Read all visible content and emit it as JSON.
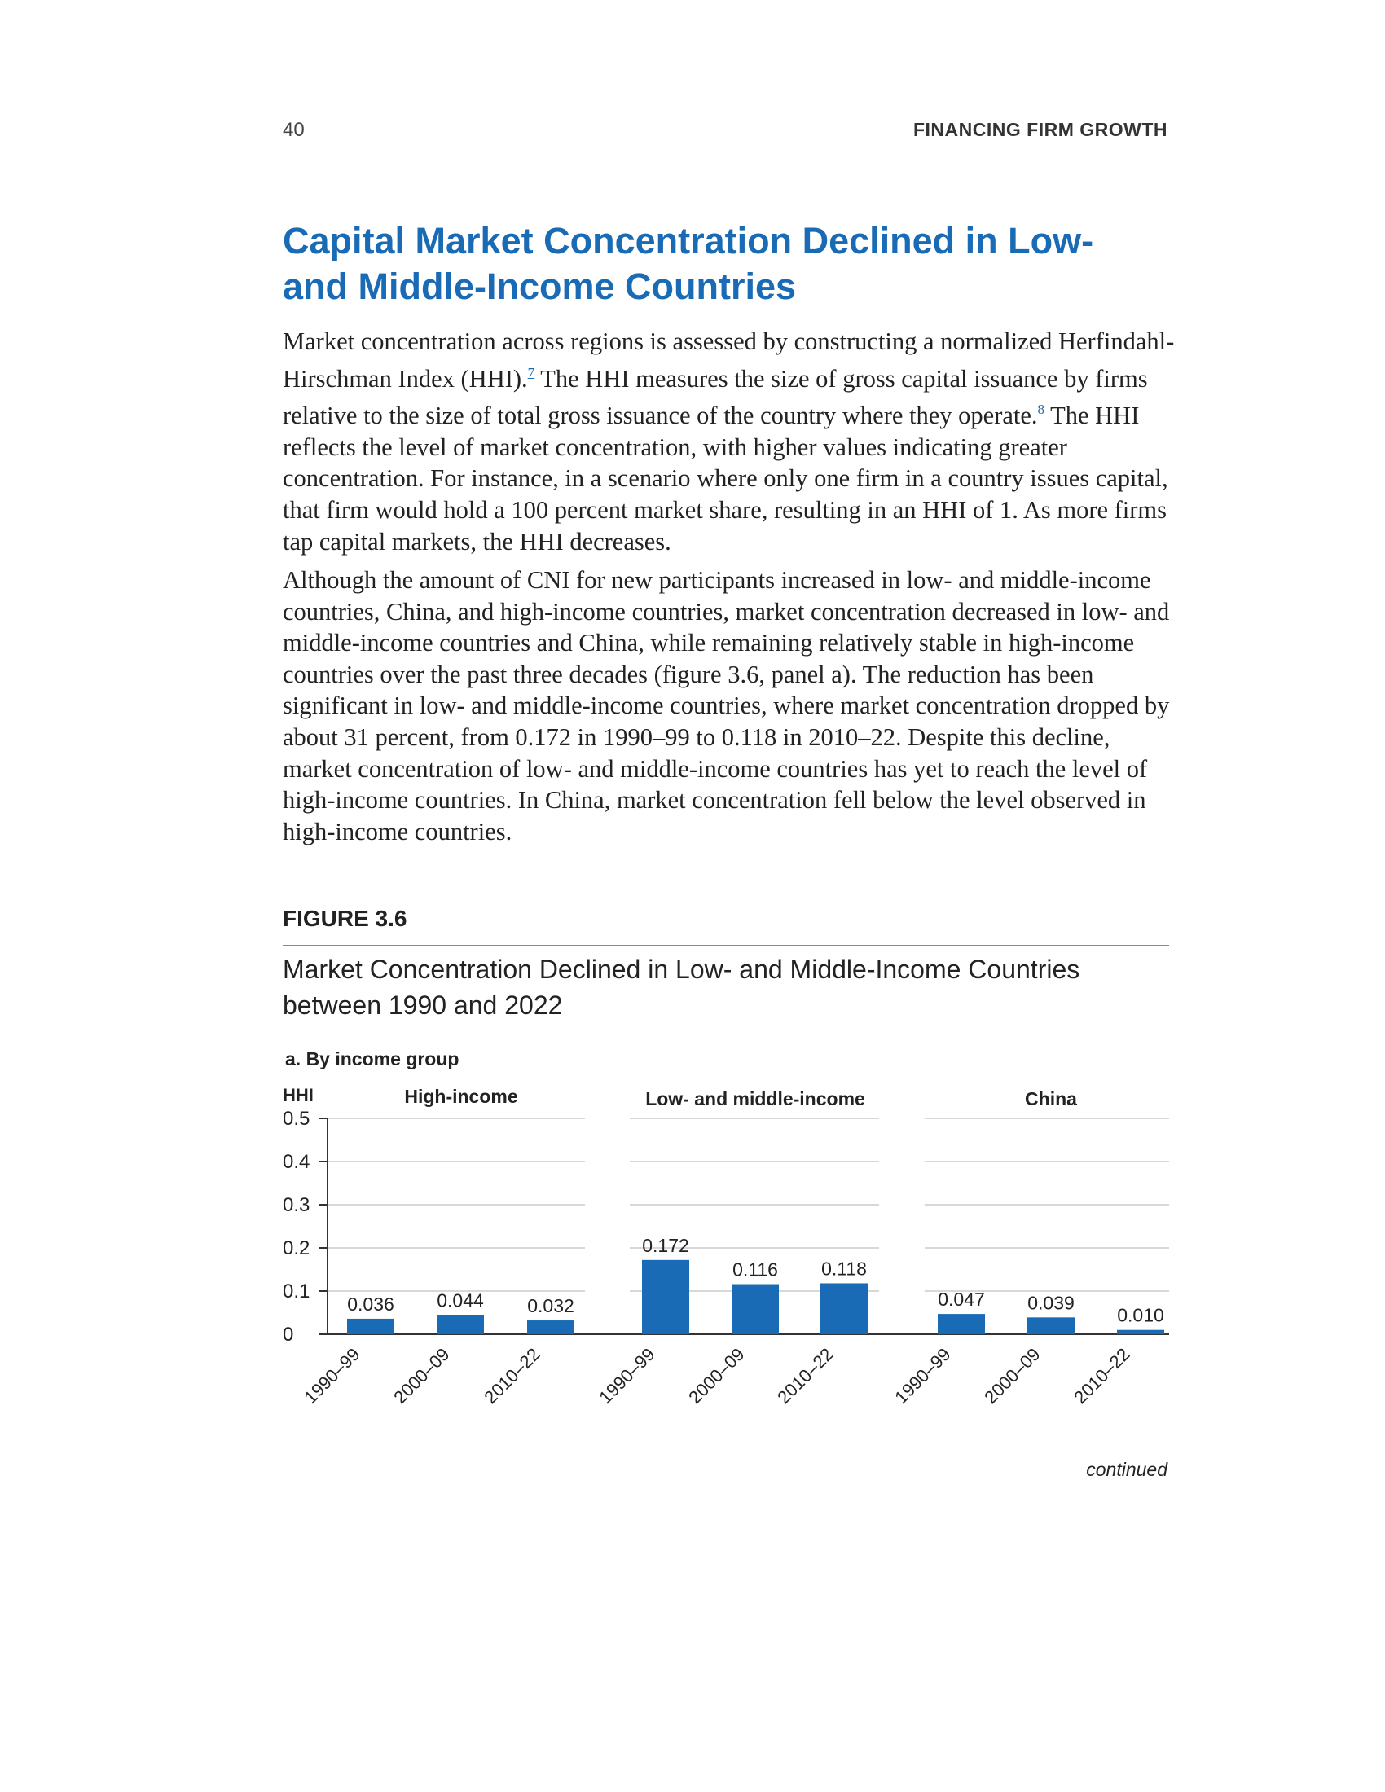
{
  "header": {
    "page_number": "40",
    "running_title": "FINANCING FIRM GROWTH"
  },
  "section": {
    "title": "Capital Market Concentration Declined in Low- and Middle-Income Countries"
  },
  "paragraphs": {
    "p1_a": "Market concentration across regions is assessed by constructing a normalized Herfindahl-Hirschman Index (HHI).",
    "p1_note1": "7",
    "p1_b": " The HHI measures the size of gross capital issuance by firms relative to the size of total gross issuance of the country where they operate.",
    "p1_note2": "8",
    "p1_c": " The HHI reflects the level of market concentration, with higher values indicating greater concentration. For instance, in a scenario where only one firm in a country issues capital, that firm would hold a 100 percent market share, resulting in an HHI of 1. As more firms tap capital markets, the HHI decreases.",
    "p2": "Although the amount of CNI for new participants increased in low- and middle-income countries, China, and high-income countries, market concentration decreased in low- and middle-income countries and China, while remaining relatively stable in high-income countries over the past three decades (figure 3.6, panel a). The reduction has been significant in low- and middle-income countries, where market concentration dropped by about 31 percent, from 0.172 in 1990–99 to 0.118 in 2010–22. Despite this decline, market concentration of low- and middle-income countries has yet to reach the level of high-income countries. In China, market concentration fell below the level observed in high-income countries."
  },
  "figure": {
    "label": "FIGURE 3.6",
    "title": "Market Concentration Declined in Low- and Middle-Income Countries between 1990 and 2022",
    "panel_label": "a. By income group",
    "continued": "continued"
  },
  "colors": {
    "bar": "#1a6bb5",
    "title_blue": "#1a6bb5",
    "grid": "#cccccc"
  },
  "chart_data": {
    "type": "bar",
    "ylabel": "HHI",
    "ylim": [
      0,
      0.5
    ],
    "yticks": [
      "0",
      "0.1",
      "0.2",
      "0.3",
      "0.4",
      "0.5"
    ],
    "grid": true,
    "groups": [
      {
        "name": "High-income",
        "categories": [
          "1990–99",
          "2000–09",
          "2010–22"
        ],
        "values": [
          0.036,
          0.044,
          0.032
        ],
        "labels": [
          "0.036",
          "0.044",
          "0.032"
        ]
      },
      {
        "name": "Low- and middle-income",
        "categories": [
          "1990–99",
          "2000–09",
          "2010–22"
        ],
        "values": [
          0.172,
          0.116,
          0.118
        ],
        "labels": [
          "0.172",
          "0.116",
          "0.118"
        ]
      },
      {
        "name": "China",
        "categories": [
          "1990–99",
          "2000–09",
          "2010–22"
        ],
        "values": [
          0.047,
          0.039,
          0.01
        ],
        "labels": [
          "0.047",
          "0.039",
          "0.010"
        ]
      }
    ]
  }
}
